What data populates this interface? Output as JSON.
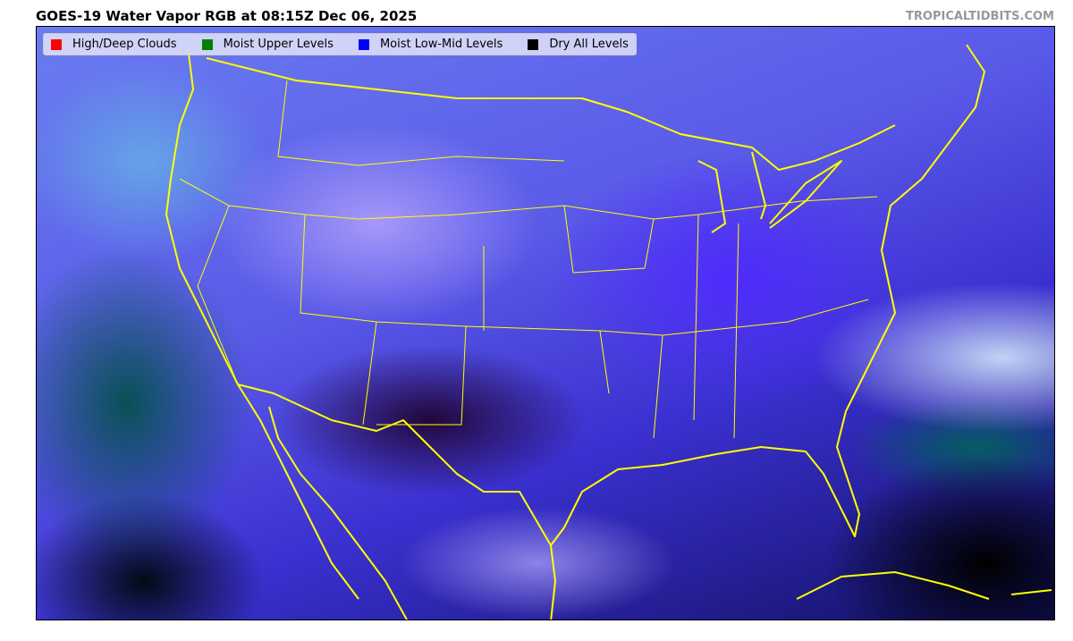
{
  "title": "GOES-19 Water Vapor RGB at 08:15Z Dec 06, 2025",
  "credit": "TROPICALTIDBITS.COM",
  "legend": [
    {
      "label": "High/Deep Clouds",
      "color": "#ff0000"
    },
    {
      "label": "Moist Upper Levels",
      "color": "#008000"
    },
    {
      "label": "Moist Low-Mid Levels",
      "color": "#0000ff"
    },
    {
      "label": "Dry All Levels",
      "color": "#000000"
    }
  ],
  "colors": {
    "boundaries": "#ffff00"
  }
}
